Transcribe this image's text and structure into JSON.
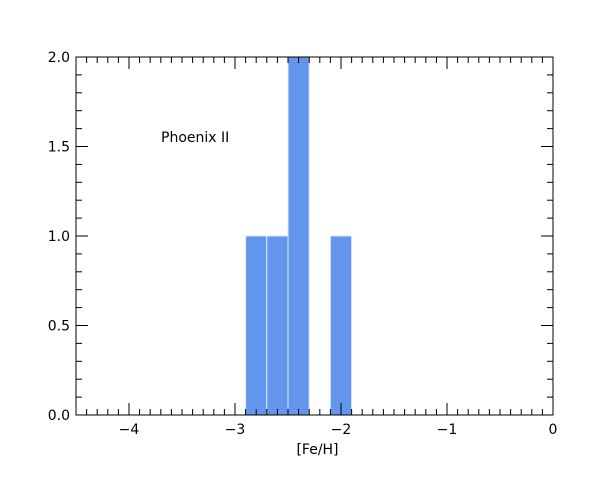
{
  "chart_data": {
    "type": "bar",
    "title": "",
    "annotation": "Phoenix II",
    "xlabel": "[Fe/H]",
    "ylabel": "",
    "xlim": [
      -4.5,
      0
    ],
    "ylim": [
      0,
      2.0
    ],
    "x_ticks": [
      "−4",
      "−3",
      "−2",
      "−1",
      "0"
    ],
    "y_ticks": [
      "0.0",
      "0.5",
      "1.0",
      "1.5",
      "2.0"
    ],
    "bin_width": 0.2,
    "bins": [
      {
        "x0": -2.9,
        "x1": -2.7,
        "value": 1
      },
      {
        "x0": -2.7,
        "x1": -2.5,
        "value": 1
      },
      {
        "x0": -2.5,
        "x1": -2.3,
        "value": 2
      },
      {
        "x0": -2.1,
        "x1": -1.9,
        "value": 1
      }
    ],
    "bar_color": "#6495ed",
    "bar_edge_color": "#dde8fb",
    "grid": false
  }
}
